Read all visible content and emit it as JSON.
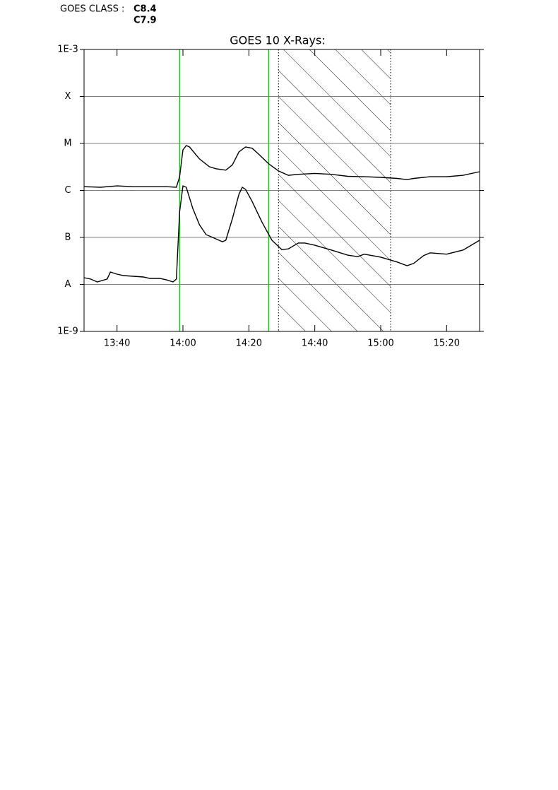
{
  "goes_class": {
    "label": "GOES CLASS :",
    "values": [
      "C8.4",
      "C7.9"
    ]
  },
  "chart_data": {
    "type": "line",
    "title": "GOES 10 X-Rays:",
    "log_y": true,
    "grid": true,
    "xlim": [
      "13:30",
      "15:30"
    ],
    "xticks": [
      "13:40",
      "14:00",
      "14:20",
      "14:40",
      "15:00",
      "15:20"
    ],
    "ylim": [
      1e-09,
      0.001
    ],
    "yticks": [
      {
        "value": 1e-09,
        "label": "1E-9"
      },
      {
        "value": 1e-08,
        "label": "A"
      },
      {
        "value": 1e-07,
        "label": "B"
      },
      {
        "value": 1e-06,
        "label": "C"
      },
      {
        "value": 1e-05,
        "label": "M"
      },
      {
        "value": 0.0001,
        "label": "X"
      },
      {
        "value": 0.001,
        "label": "1E-3"
      }
    ],
    "vlines": {
      "x": [
        "13:59",
        "14:26"
      ],
      "color": "#22bb22"
    },
    "shade": [
      "14:29",
      "15:03"
    ],
    "series": [
      {
        "color": "#000000",
        "x": [
          "13:30",
          "13:35",
          "13:40",
          "13:45",
          "13:50",
          "13:55",
          "13:58",
          "13:59",
          "14:00",
          "14:01",
          "14:02",
          "14:05",
          "14:08",
          "14:10",
          "14:13",
          "14:15",
          "14:17",
          "14:19",
          "14:21",
          "14:23",
          "14:26",
          "14:29",
          "14:32",
          "14:35",
          "14:40",
          "14:45",
          "14:50",
          "14:55",
          "15:00",
          "15:05",
          "15:08",
          "15:10",
          "15:15",
          "15:20",
          "15:25",
          "15:30"
        ],
        "values": [
          1.2e-06,
          1.17e-06,
          1.25e-06,
          1.2e-06,
          1.2e-06,
          1.2e-06,
          1.17e-06,
          1.96e-06,
          7.3e-06,
          9e-06,
          8.4e-06,
          4.7e-06,
          3.2e-06,
          2.9e-06,
          2.7e-06,
          3.5e-06,
          6.6e-06,
          8.4e-06,
          7.9e-06,
          5.9e-06,
          3.7e-06,
          2.6e-06,
          2.1e-06,
          2.2e-06,
          2.3e-06,
          2.2e-06,
          2e-06,
          1.96e-06,
          1.9e-06,
          1.8e-06,
          1.7e-06,
          1.8e-06,
          1.96e-06,
          1.96e-06,
          2.1e-06,
          2.5e-06
        ]
      },
      {
        "color": "#000000",
        "x": [
          "13:30",
          "13:32",
          "13:34",
          "13:37",
          "13:38",
          "13:40",
          "13:42",
          "13:45",
          "13:48",
          "13:50",
          "13:53",
          "13:55",
          "13:57",
          "13:58",
          "13:59",
          "14:00",
          "14:01",
          "14:03",
          "14:05",
          "14:07",
          "14:09",
          "14:12",
          "14:13",
          "14:15",
          "14:17",
          "14:18",
          "14:19",
          "14:21",
          "14:24",
          "14:27",
          "14:30",
          "14:32",
          "14:35",
          "14:37",
          "14:40",
          "14:45",
          "14:50",
          "14:53",
          "14:55",
          "15:00",
          "15:05",
          "15:08",
          "15:10",
          "15:13",
          "15:15",
          "15:20",
          "15:25",
          "15:30"
        ],
        "values": [
          1.39e-08,
          1.3e-08,
          1.13e-08,
          1.3e-08,
          1.83e-08,
          1.65e-08,
          1.54e-08,
          1.49e-08,
          1.44e-08,
          1.34e-08,
          1.34e-08,
          1.25e-08,
          1.13e-08,
          1.3e-08,
          3.5e-07,
          1.25e-06,
          1.17e-06,
          4.1e-07,
          1.87e-07,
          1.15e-07,
          1e-07,
          8.1e-08,
          8.7e-08,
          2.5e-07,
          8.3e-07,
          1.17e-06,
          1.05e-06,
          5.8e-07,
          2.1e-07,
          8.7e-08,
          5.5e-08,
          5.7e-08,
          7.6e-08,
          7.6e-08,
          6.8e-08,
          5.4e-08,
          4.2e-08,
          3.9e-08,
          4.4e-08,
          3.8e-08,
          3e-08,
          2.5e-08,
          2.8e-08,
          4.1e-08,
          4.7e-08,
          4.4e-08,
          5.4e-08,
          8.7e-08
        ]
      }
    ]
  }
}
